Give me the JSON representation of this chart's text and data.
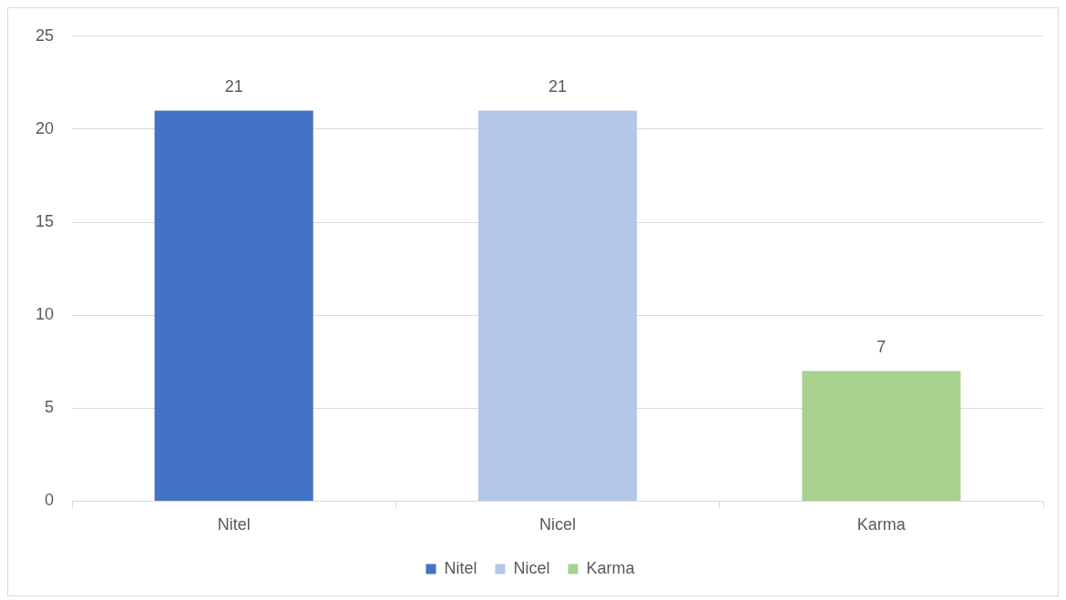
{
  "chart_data": {
    "type": "bar",
    "categories": [
      "Nitel",
      "Nicel",
      "Karma"
    ],
    "series": [
      {
        "name": "Nitel",
        "color": "#4472c4",
        "values": [
          21,
          null,
          null
        ]
      },
      {
        "name": "Nicel",
        "color": "#b4c7e7",
        "values": [
          null,
          21,
          null
        ]
      },
      {
        "name": "Karma",
        "color": "#a9d18e",
        "values": [
          null,
          null,
          7
        ]
      }
    ],
    "ylim": [
      0,
      25
    ],
    "yticks": [
      0,
      5,
      10,
      15,
      20,
      25
    ],
    "grid": "y",
    "legend": "bottom",
    "data_labels": true
  }
}
